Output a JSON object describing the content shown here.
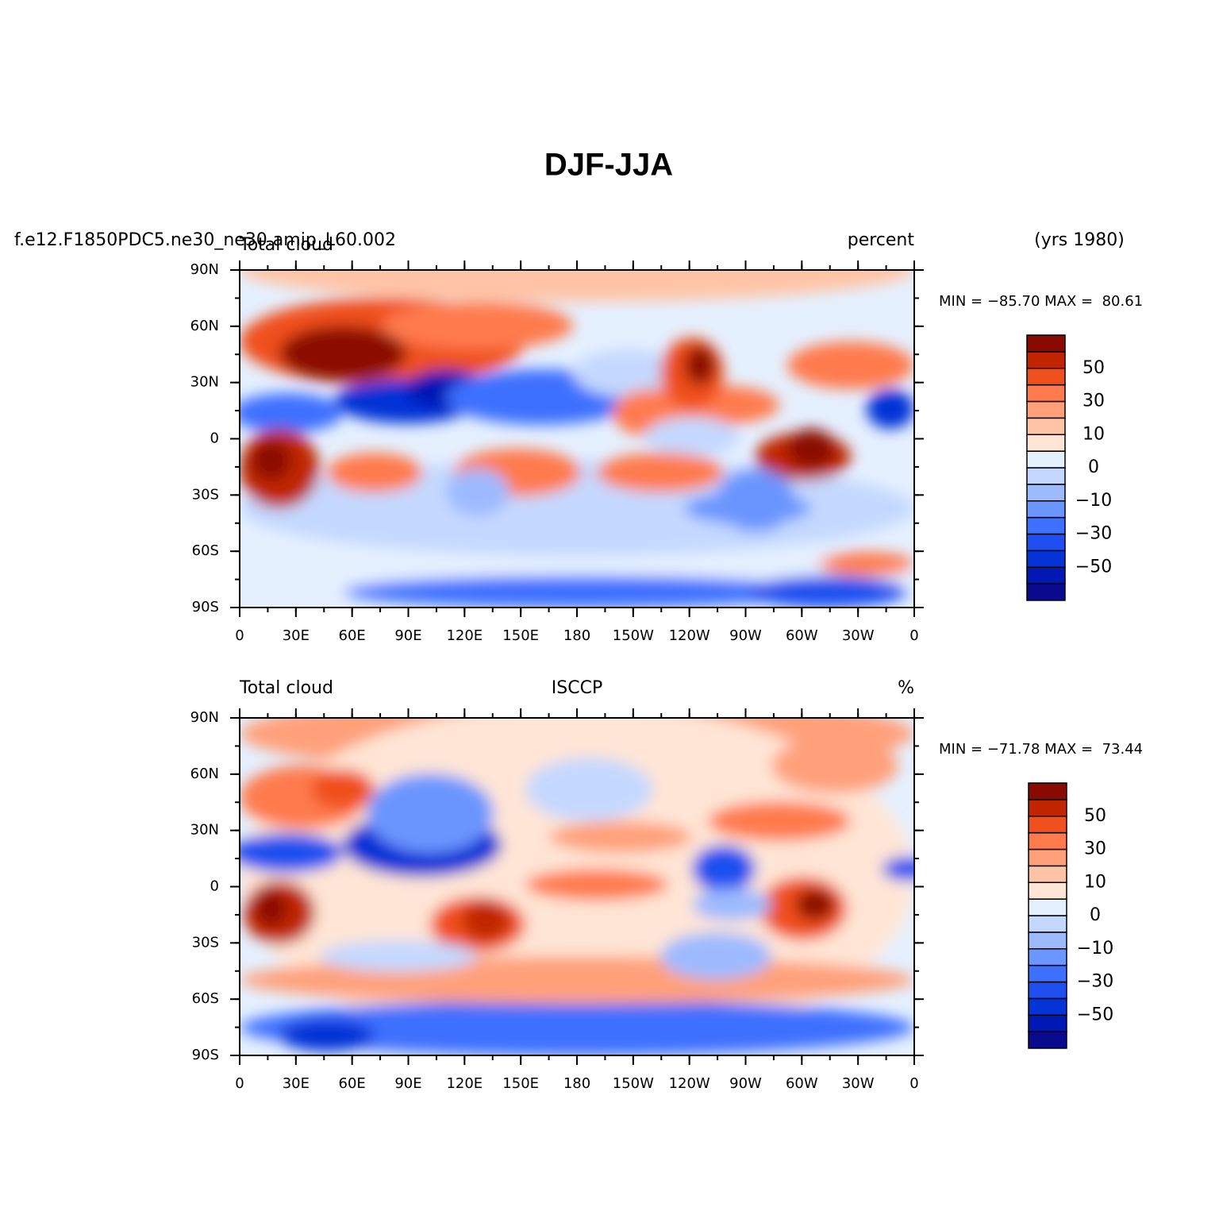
{
  "title": "DJF-JJA",
  "panels": [
    {
      "model_name": "f.e12.F1850PDC5.ne30_ne30.amip_L60.002",
      "left_string": "Total cloud",
      "right_string": "percent",
      "years": "(yrs 1980)",
      "min_max": "MIN = −85.70 MAX =  80.61",
      "lat_labels": [
        "90N",
        "60N",
        "30N",
        "0",
        "30S",
        "60S",
        "90S"
      ],
      "lon_labels": [
        "0",
        "30E",
        "60E",
        "90E",
        "120E",
        "150E",
        "180",
        "150W",
        "120W",
        "90W",
        "60W",
        "30W",
        "0"
      ],
      "colorbar": {
        "colors": [
          "#0a0a8f",
          "#0019b5",
          "#0533d6",
          "#1f4ff0",
          "#3d70ff",
          "#6b95ff",
          "#9dbaff",
          "#c4d8ff",
          "#e5f0ff",
          "#ffe5d6",
          "#ffc4a6",
          "#ffa07a",
          "#ff7a4d",
          "#f0501e",
          "#c02500",
          "#8b0a00"
        ],
        "labels": [
          "50",
          "30",
          "10",
          "0",
          "−10",
          "−30",
          "−50"
        ]
      }
    },
    {
      "left_string": "Total cloud",
      "center_string": "ISCCP",
      "right_string": "%",
      "min_max": "MIN = −71.78 MAX =  73.44",
      "lat_labels": [
        "90N",
        "60N",
        "30N",
        "0",
        "30S",
        "60S",
        "90S"
      ],
      "lon_labels": [
        "0",
        "30E",
        "60E",
        "90E",
        "120E",
        "150E",
        "180",
        "150W",
        "120W",
        "90W",
        "60W",
        "30W",
        "0"
      ],
      "colorbar": {
        "colors": [
          "#0a0a8f",
          "#0019b5",
          "#0533d6",
          "#1f4ff0",
          "#3d70ff",
          "#6b95ff",
          "#9dbaff",
          "#c4d8ff",
          "#e5f0ff",
          "#ffe5d6",
          "#ffc4a6",
          "#ffa07a",
          "#ff7a4d",
          "#f0501e",
          "#c02500",
          "#8b0a00"
        ],
        "labels": [
          "50",
          "30",
          "10",
          "0",
          "−10",
          "−30",
          "−50"
        ]
      }
    }
  ]
}
